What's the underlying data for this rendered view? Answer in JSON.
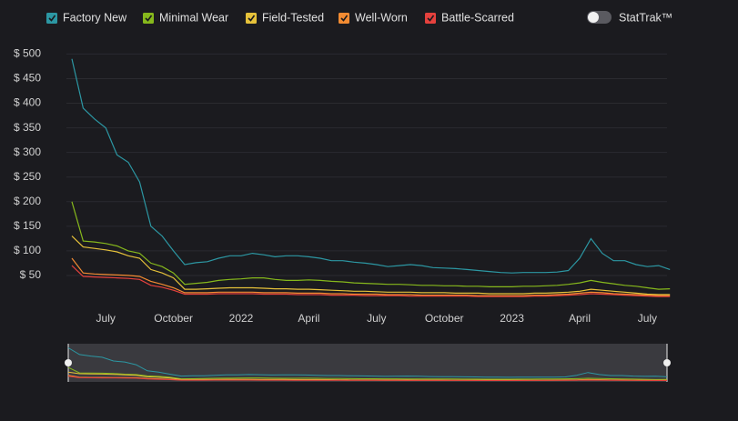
{
  "chart_data": {
    "type": "line",
    "toggle_label": "StatTrak™",
    "categories": [
      null,
      null,
      null,
      "July",
      null,
      null,
      null,
      null,
      null,
      "October",
      null,
      null,
      null,
      null,
      null,
      "2022",
      null,
      null,
      null,
      null,
      null,
      "April",
      null,
      null,
      null,
      null,
      null,
      "July",
      null,
      null,
      null,
      null,
      null,
      "October",
      null,
      null,
      null,
      null,
      null,
      "2023",
      null,
      null,
      null,
      null,
      null,
      "April",
      null,
      null,
      null,
      null,
      null,
      "July",
      null,
      null
    ],
    "series": [
      {
        "name": "Factory New",
        "color": "#2c97a3",
        "values": [
          490,
          390,
          368,
          350,
          295,
          280,
          240,
          150,
          130,
          100,
          72,
          76,
          78,
          85,
          90,
          90,
          95,
          92,
          88,
          90,
          90,
          88,
          85,
          80,
          80,
          77,
          75,
          72,
          68,
          70,
          72,
          70,
          66,
          65,
          64,
          62,
          60,
          58,
          56,
          55,
          56,
          56,
          56,
          57,
          60,
          85,
          125,
          95,
          80,
          80,
          72,
          68,
          70,
          62
        ]
      },
      {
        "name": "Minimal Wear",
        "color": "#86b81c",
        "values": [
          200,
          120,
          118,
          115,
          110,
          100,
          95,
          75,
          68,
          55,
          32,
          34,
          36,
          40,
          42,
          43,
          45,
          45,
          42,
          40,
          40,
          41,
          40,
          38,
          37,
          35,
          34,
          33,
          32,
          32,
          31,
          30,
          30,
          29,
          29,
          28,
          28,
          27,
          27,
          27,
          28,
          28,
          29,
          30,
          32,
          35,
          40,
          36,
          33,
          30,
          28,
          25,
          22,
          23
        ]
      },
      {
        "name": "Field-Tested",
        "color": "#e6c23a",
        "values": [
          130,
          108,
          105,
          102,
          98,
          90,
          85,
          62,
          55,
          45,
          22,
          22,
          23,
          24,
          25,
          25,
          25,
          24,
          23,
          23,
          22,
          22,
          21,
          20,
          19,
          18,
          18,
          17,
          16,
          16,
          16,
          15,
          15,
          15,
          14,
          14,
          14,
          13,
          13,
          13,
          13,
          14,
          14,
          15,
          16,
          18,
          22,
          20,
          18,
          16,
          14,
          12,
          11,
          11
        ]
      },
      {
        "name": "Well-Worn",
        "color": "#f28b32",
        "values": [
          85,
          55,
          53,
          52,
          51,
          50,
          48,
          38,
          32,
          25,
          15,
          15,
          15,
          16,
          16,
          16,
          16,
          15,
          15,
          15,
          14,
          14,
          14,
          13,
          13,
          12,
          12,
          12,
          11,
          11,
          11,
          10,
          10,
          10,
          10,
          10,
          9,
          9,
          9,
          9,
          9,
          10,
          10,
          11,
          12,
          14,
          16,
          15,
          13,
          12,
          11,
          10,
          9,
          9
        ]
      },
      {
        "name": "Battle-Scarred",
        "color": "#e5413d",
        "values": [
          70,
          48,
          47,
          46,
          45,
          44,
          42,
          30,
          26,
          20,
          12,
          12,
          12,
          13,
          13,
          13,
          13,
          12,
          12,
          12,
          11,
          11,
          11,
          10,
          10,
          10,
          9,
          9,
          9,
          9,
          8,
          8,
          8,
          8,
          8,
          8,
          7,
          7,
          7,
          7,
          7,
          8,
          8,
          9,
          10,
          11,
          13,
          12,
          11,
          10,
          9,
          8,
          7,
          7
        ]
      }
    ],
    "ylim": [
      0,
      510
    ],
    "yticks": [
      {
        "value": 50,
        "label": "$ 50"
      },
      {
        "value": 100,
        "label": "$ 100"
      },
      {
        "value": 150,
        "label": "$ 150"
      },
      {
        "value": 200,
        "label": "$ 200"
      },
      {
        "value": 250,
        "label": "$ 250"
      },
      {
        "value": 300,
        "label": "$ 300"
      },
      {
        "value": 350,
        "label": "$ 350"
      },
      {
        "value": 400,
        "label": "$ 400"
      },
      {
        "value": 450,
        "label": "$ 450"
      },
      {
        "value": 500,
        "label": "$ 500"
      }
    ],
    "grid": true
  }
}
